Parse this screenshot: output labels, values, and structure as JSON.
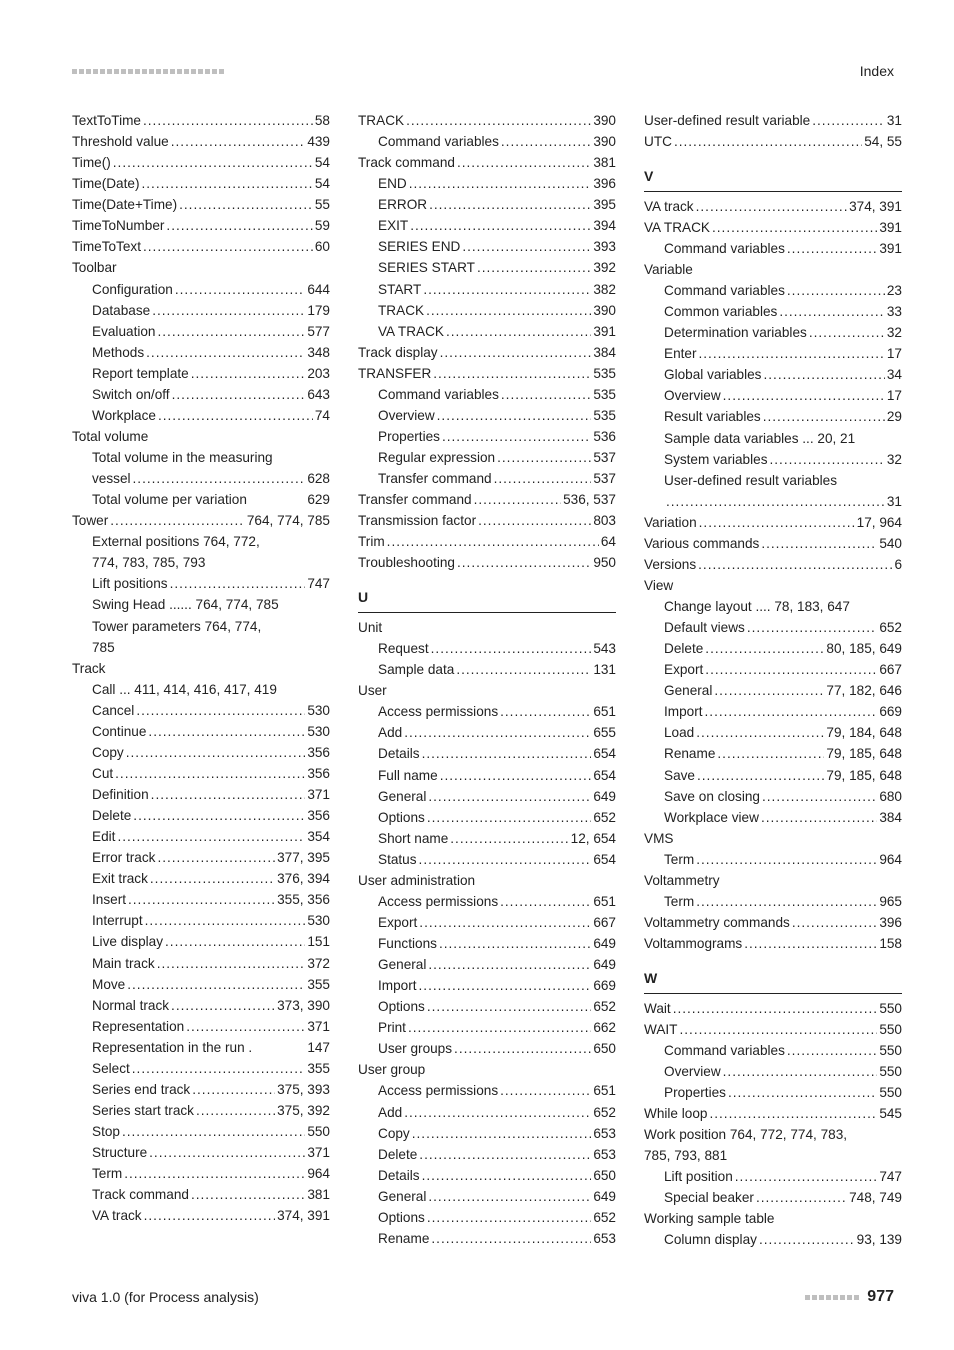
{
  "header": {
    "index_label": "Index"
  },
  "footer": {
    "left": "viva 1.0 (for Process analysis)",
    "page": "977"
  },
  "sections": {
    "U": "U",
    "V": "V",
    "W": "W"
  },
  "col1": [
    {
      "i": 0,
      "l": "TextToTime",
      "p": "58"
    },
    {
      "i": 0,
      "l": "Threshold value",
      "p": "439"
    },
    {
      "i": 0,
      "l": "Time()",
      "p": "54"
    },
    {
      "i": 0,
      "l": "Time(Date)",
      "p": "54"
    },
    {
      "i": 0,
      "l": "Time(Date+Time)",
      "p": "55"
    },
    {
      "i": 0,
      "l": "TimeToNumber",
      "p": "59"
    },
    {
      "i": 0,
      "l": "TimeToText",
      "p": "60"
    },
    {
      "i": 0,
      "l": "Toolbar",
      "p": "",
      "noleader": true
    },
    {
      "i": 1,
      "l": "Configuration",
      "p": "644"
    },
    {
      "i": 1,
      "l": "Database",
      "p": "179"
    },
    {
      "i": 1,
      "l": "Evaluation",
      "p": "577"
    },
    {
      "i": 1,
      "l": "Methods",
      "p": "348"
    },
    {
      "i": 1,
      "l": "Report template",
      "p": "203"
    },
    {
      "i": 1,
      "l": "Switch on/off",
      "p": "643"
    },
    {
      "i": 1,
      "l": "Workplace",
      "p": "74"
    },
    {
      "i": 0,
      "l": "Total volume",
      "p": "",
      "noleader": true
    },
    {
      "i": 1,
      "l": "Total volume in the measuring",
      "p": "",
      "noleader": true
    },
    {
      "i": 1,
      "l": "vessel",
      "p": "628"
    },
    {
      "i": 1,
      "l": "Total volume per variation",
      "p": "629",
      "tight": true
    },
    {
      "i": 0,
      "l": "Tower",
      "p": "764, 774, 785"
    },
    {
      "i": 1,
      "l": "External positions   764, 772,",
      "p": "",
      "noleader": true
    },
    {
      "i": 1,
      "l": "774,      783,      785,      793",
      "p": "",
      "noleader": true
    },
    {
      "i": 1,
      "l": "Lift positions",
      "p": "747"
    },
    {
      "i": 1,
      "l": "Swing Head ...... 764, 774, 785",
      "p": "",
      "noleader": true
    },
    {
      "i": 1,
      "l": "Tower parameters   764, 774,",
      "p": "",
      "noleader": true
    },
    {
      "i": 1,
      "l": "785",
      "p": "",
      "noleader": true
    },
    {
      "i": 0,
      "l": "Track",
      "p": "",
      "noleader": true
    },
    {
      "i": 1,
      "l": "Call ... 411, 414, 416, 417, 419",
      "p": "",
      "noleader": true
    },
    {
      "i": 1,
      "l": "Cancel",
      "p": "530"
    },
    {
      "i": 1,
      "l": "Continue",
      "p": "530"
    },
    {
      "i": 1,
      "l": "Copy",
      "p": "356"
    },
    {
      "i": 1,
      "l": "Cut",
      "p": "356"
    },
    {
      "i": 1,
      "l": "Definition",
      "p": "371"
    },
    {
      "i": 1,
      "l": "Delete",
      "p": "356"
    },
    {
      "i": 1,
      "l": "Edit",
      "p": "354"
    },
    {
      "i": 1,
      "l": "Error track",
      "p": "377, 395"
    },
    {
      "i": 1,
      "l": "Exit track",
      "p": "376, 394"
    },
    {
      "i": 1,
      "l": "Insert",
      "p": "355, 356"
    },
    {
      "i": 1,
      "l": "Interrupt",
      "p": "530"
    },
    {
      "i": 1,
      "l": "Live display",
      "p": "151"
    },
    {
      "i": 1,
      "l": "Main track",
      "p": "372"
    },
    {
      "i": 1,
      "l": "Move",
      "p": "355"
    },
    {
      "i": 1,
      "l": "Normal track",
      "p": "373, 390"
    },
    {
      "i": 1,
      "l": "Representation",
      "p": "371"
    },
    {
      "i": 1,
      "l": "Representation in the run .",
      "p": "147",
      "tight": true
    },
    {
      "i": 1,
      "l": "Select",
      "p": "355"
    },
    {
      "i": 1,
      "l": "Series end track",
      "p": "375, 393"
    },
    {
      "i": 1,
      "l": "Series start track",
      "p": "375, 392"
    },
    {
      "i": 1,
      "l": "Stop",
      "p": "550"
    },
    {
      "i": 1,
      "l": "Structure",
      "p": "371"
    },
    {
      "i": 1,
      "l": "Term",
      "p": "964"
    },
    {
      "i": 1,
      "l": "Track command",
      "p": "381"
    },
    {
      "i": 1,
      "l": "VA track",
      "p": "374, 391"
    }
  ],
  "col2a": [
    {
      "i": 0,
      "l": "TRACK",
      "p": "390"
    },
    {
      "i": 1,
      "l": "Command variables",
      "p": "390"
    },
    {
      "i": 0,
      "l": "Track command",
      "p": "381"
    },
    {
      "i": 1,
      "l": "END",
      "p": "396"
    },
    {
      "i": 1,
      "l": "ERROR",
      "p": "395"
    },
    {
      "i": 1,
      "l": "EXIT",
      "p": "394"
    },
    {
      "i": 1,
      "l": "SERIES END",
      "p": "393"
    },
    {
      "i": 1,
      "l": "SERIES START",
      "p": "392"
    },
    {
      "i": 1,
      "l": "START",
      "p": "382"
    },
    {
      "i": 1,
      "l": "TRACK",
      "p": "390"
    },
    {
      "i": 1,
      "l": "VA TRACK",
      "p": "391"
    },
    {
      "i": 0,
      "l": "Track display",
      "p": "384"
    },
    {
      "i": 0,
      "l": "TRANSFER",
      "p": "535"
    },
    {
      "i": 1,
      "l": "Command variables",
      "p": "535"
    },
    {
      "i": 1,
      "l": "Overview",
      "p": "535"
    },
    {
      "i": 1,
      "l": "Properties",
      "p": "536"
    },
    {
      "i": 1,
      "l": "Regular expression",
      "p": "537"
    },
    {
      "i": 1,
      "l": "Transfer command",
      "p": "537"
    },
    {
      "i": 0,
      "l": "Transfer command",
      "p": "536, 537"
    },
    {
      "i": 0,
      "l": "Transmission factor",
      "p": "803"
    },
    {
      "i": 0,
      "l": "Trim",
      "p": "64"
    },
    {
      "i": 0,
      "l": "Troubleshooting",
      "p": "950"
    }
  ],
  "col2b": [
    {
      "i": 0,
      "l": "Unit",
      "p": "",
      "noleader": true
    },
    {
      "i": 1,
      "l": "Request",
      "p": "543"
    },
    {
      "i": 1,
      "l": "Sample data",
      "p": "131"
    },
    {
      "i": 0,
      "l": "User",
      "p": "",
      "noleader": true
    },
    {
      "i": 1,
      "l": "Access permissions",
      "p": "651"
    },
    {
      "i": 1,
      "l": "Add",
      "p": "655"
    },
    {
      "i": 1,
      "l": "Details",
      "p": "654"
    },
    {
      "i": 1,
      "l": "Full name",
      "p": "654"
    },
    {
      "i": 1,
      "l": "General",
      "p": "649"
    },
    {
      "i": 1,
      "l": "Options",
      "p": "652"
    },
    {
      "i": 1,
      "l": "Short name",
      "p": "12, 654"
    },
    {
      "i": 1,
      "l": "Status",
      "p": "654"
    },
    {
      "i": 0,
      "l": "User administration",
      "p": "",
      "noleader": true
    },
    {
      "i": 1,
      "l": "Access permissions",
      "p": "651"
    },
    {
      "i": 1,
      "l": "Export",
      "p": "667"
    },
    {
      "i": 1,
      "l": "Functions",
      "p": "649"
    },
    {
      "i": 1,
      "l": "General",
      "p": "649"
    },
    {
      "i": 1,
      "l": "Import",
      "p": "669"
    },
    {
      "i": 1,
      "l": "Options",
      "p": "652"
    },
    {
      "i": 1,
      "l": "Print",
      "p": "662"
    },
    {
      "i": 1,
      "l": "User groups",
      "p": "650"
    },
    {
      "i": 0,
      "l": "User group",
      "p": "",
      "noleader": true
    },
    {
      "i": 1,
      "l": "Access permissions",
      "p": "651"
    },
    {
      "i": 1,
      "l": "Add",
      "p": "652"
    },
    {
      "i": 1,
      "l": "Copy",
      "p": "653"
    },
    {
      "i": 1,
      "l": "Delete",
      "p": "653"
    },
    {
      "i": 1,
      "l": "Details",
      "p": "650"
    },
    {
      "i": 1,
      "l": "General",
      "p": "649"
    },
    {
      "i": 1,
      "l": "Options",
      "p": "652"
    },
    {
      "i": 1,
      "l": "Rename",
      "p": "653"
    }
  ],
  "col3a": [
    {
      "i": 0,
      "l": "User-defined result variable",
      "p": "31"
    },
    {
      "i": 0,
      "l": "UTC",
      "p": "54, 55"
    }
  ],
  "col3b": [
    {
      "i": 0,
      "l": "VA track",
      "p": "374, 391"
    },
    {
      "i": 0,
      "l": "VA TRACK",
      "p": "391"
    },
    {
      "i": 1,
      "l": "Command variables",
      "p": "391"
    },
    {
      "i": 0,
      "l": "Variable",
      "p": "",
      "noleader": true
    },
    {
      "i": 1,
      "l": "Command variables",
      "p": "23"
    },
    {
      "i": 1,
      "l": "Common variables",
      "p": "33"
    },
    {
      "i": 1,
      "l": "Determination variables",
      "p": "32"
    },
    {
      "i": 1,
      "l": "Enter",
      "p": "17"
    },
    {
      "i": 1,
      "l": "Global variables",
      "p": "34"
    },
    {
      "i": 1,
      "l": "Overview",
      "p": "17"
    },
    {
      "i": 1,
      "l": "Result variables",
      "p": "29"
    },
    {
      "i": 1,
      "l": "Sample data variables ... 20, 21",
      "p": "",
      "noleader": true
    },
    {
      "i": 1,
      "l": "System variables",
      "p": "32"
    },
    {
      "i": 1,
      "l": "User-defined result variables",
      "p": "",
      "noleader": true
    },
    {
      "i": 1,
      "l": "",
      "p": "31"
    },
    {
      "i": 0,
      "l": "Variation",
      "p": "17, 964"
    },
    {
      "i": 0,
      "l": "Various commands",
      "p": "540"
    },
    {
      "i": 0,
      "l": "Versions",
      "p": "6"
    },
    {
      "i": 0,
      "l": "View",
      "p": "",
      "noleader": true
    },
    {
      "i": 1,
      "l": "Change layout .... 78, 183, 647",
      "p": "",
      "noleader": true
    },
    {
      "i": 1,
      "l": "Default views",
      "p": "652"
    },
    {
      "i": 1,
      "l": "Delete",
      "p": "80, 185, 649"
    },
    {
      "i": 1,
      "l": "Export",
      "p": "667"
    },
    {
      "i": 1,
      "l": "General",
      "p": "77, 182, 646"
    },
    {
      "i": 1,
      "l": "Import",
      "p": "669"
    },
    {
      "i": 1,
      "l": "Load",
      "p": "79, 184, 648"
    },
    {
      "i": 1,
      "l": "Rename",
      "p": "79, 185, 648"
    },
    {
      "i": 1,
      "l": "Save",
      "p": "79, 185, 648"
    },
    {
      "i": 1,
      "l": "Save on closing",
      "p": "680"
    },
    {
      "i": 1,
      "l": "Workplace view",
      "p": "384"
    },
    {
      "i": 0,
      "l": "VMS",
      "p": "",
      "noleader": true
    },
    {
      "i": 1,
      "l": "Term",
      "p": "964"
    },
    {
      "i": 0,
      "l": "Voltammetry",
      "p": "",
      "noleader": true
    },
    {
      "i": 1,
      "l": "Term",
      "p": "965"
    },
    {
      "i": 0,
      "l": "Voltammetry commands",
      "p": "396"
    },
    {
      "i": 0,
      "l": "Voltammograms",
      "p": "158"
    }
  ],
  "col3c": [
    {
      "i": 0,
      "l": "Wait",
      "p": "550"
    },
    {
      "i": 0,
      "l": "WAIT",
      "p": "550"
    },
    {
      "i": 1,
      "l": "Command variables",
      "p": "550"
    },
    {
      "i": 1,
      "l": "Overview",
      "p": "550"
    },
    {
      "i": 1,
      "l": "Properties",
      "p": "550"
    },
    {
      "i": 0,
      "l": "While loop",
      "p": "545"
    },
    {
      "i": 0,
      "l": "Work position  764, 772, 774, 783,",
      "p": "",
      "noleader": true
    },
    {
      "i": 0,
      "l": "785,            793,               881",
      "p": "",
      "noleader": true
    },
    {
      "i": 1,
      "l": "Lift position",
      "p": "747"
    },
    {
      "i": 1,
      "l": "Special beaker",
      "p": "748, 749"
    },
    {
      "i": 0,
      "l": "Working sample table",
      "p": "",
      "noleader": true
    },
    {
      "i": 1,
      "l": "Column display",
      "p": "93, 139"
    }
  ]
}
